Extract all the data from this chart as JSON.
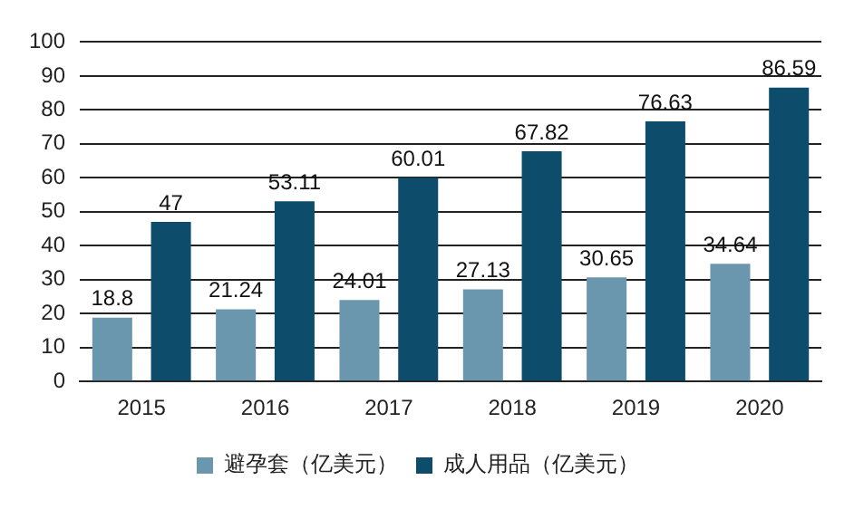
{
  "chart_data": {
    "type": "bar",
    "categories": [
      "2015",
      "2016",
      "2017",
      "2018",
      "2019",
      "2020"
    ],
    "series": [
      {
        "name": "避孕套（亿美元）",
        "color": "#6a97ad",
        "values": [
          18.8,
          21.24,
          24.01,
          27.13,
          30.65,
          34.64
        ]
      },
      {
        "name": "成人用品（亿美元）",
        "color": "#0d4d6b",
        "values": [
          47,
          53.11,
          60.01,
          67.82,
          76.63,
          86.59
        ]
      }
    ],
    "ylim": [
      0,
      100
    ],
    "yticks": [
      0,
      10,
      20,
      30,
      40,
      50,
      60,
      70,
      80,
      90,
      100
    ],
    "grid": "y",
    "legend": "bottom",
    "data_labels": true
  }
}
